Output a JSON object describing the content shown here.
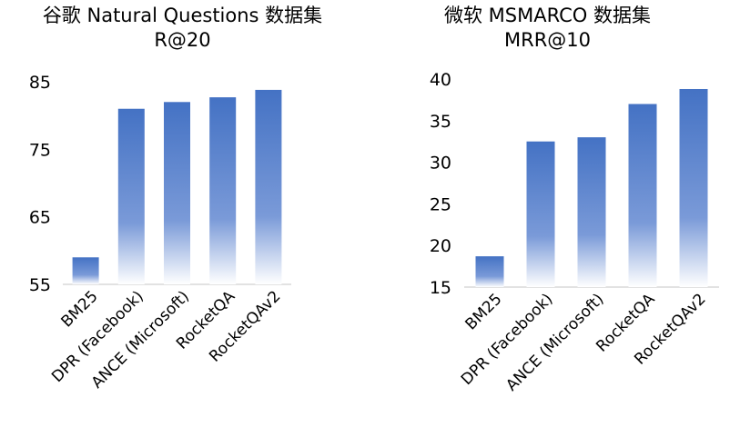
{
  "chart_data": [
    {
      "type": "bar",
      "title": "谷歌 Natural Questions 数据集",
      "subtitle": "R@20",
      "categories": [
        "BM25",
        "DPR (Facebook)",
        "ANCE (Microsoft)",
        "RocketQA",
        "RocketQAv2"
      ],
      "values": [
        59,
        81,
        82,
        82.7,
        83.8
      ],
      "ylim": [
        55,
        85
      ],
      "yticks": [
        55,
        65,
        75,
        85
      ],
      "xlabel": "",
      "ylabel": "",
      "grid": false,
      "legend": "none"
    },
    {
      "type": "bar",
      "title": "微软 MSMARCO 数据集",
      "subtitle": "MRR@10",
      "categories": [
        "BM25",
        "DPR (Facebook)",
        "ANCE (Microsoft)",
        "RocketQA",
        "RocketQAv2"
      ],
      "values": [
        18.7,
        32.5,
        33,
        37,
        38.8
      ],
      "ylim": [
        15,
        40
      ],
      "yticks": [
        15,
        20,
        25,
        30,
        35,
        40
      ],
      "xlabel": "",
      "ylabel": "",
      "grid": false,
      "legend": "none"
    }
  ],
  "colors": {
    "bar_top": "#4472c4",
    "bar_bottom": "#ffffff"
  }
}
